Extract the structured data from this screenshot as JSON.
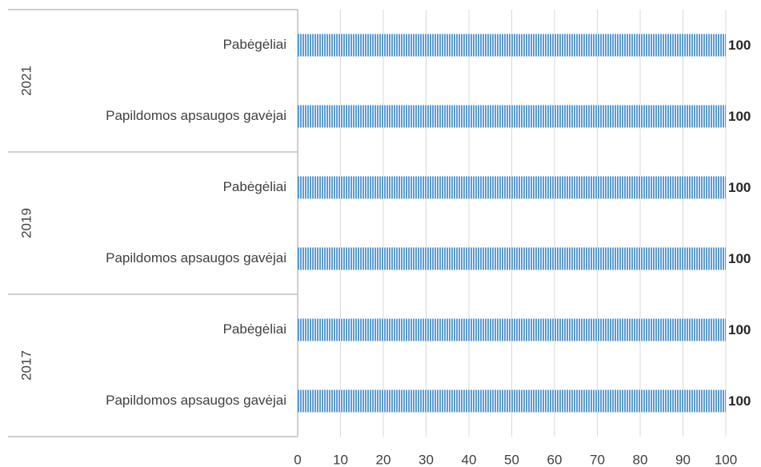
{
  "chart_data": {
    "type": "bar",
    "horizontal": true,
    "groups": [
      {
        "name": "2021",
        "categories": [
          "Pabėgėliai",
          "Papildomos apsaugos gavėjai"
        ],
        "values": [
          100,
          100
        ]
      },
      {
        "name": "2019",
        "categories": [
          "Pabėgėliai",
          "Papildomos apsaugos gavėjai"
        ],
        "values": [
          100,
          100
        ]
      },
      {
        "name": "2017",
        "categories": [
          "Pabėgėliai",
          "Papildomos apsaugos gavėjai"
        ],
        "values": [
          100,
          100
        ]
      }
    ],
    "color": "#5b9bd5",
    "pattern": "vertical-stripes",
    "xlim": [
      0,
      100
    ],
    "xticks": [
      0,
      10,
      20,
      30,
      40,
      50,
      60,
      70,
      80,
      90,
      100
    ],
    "grid": true
  }
}
